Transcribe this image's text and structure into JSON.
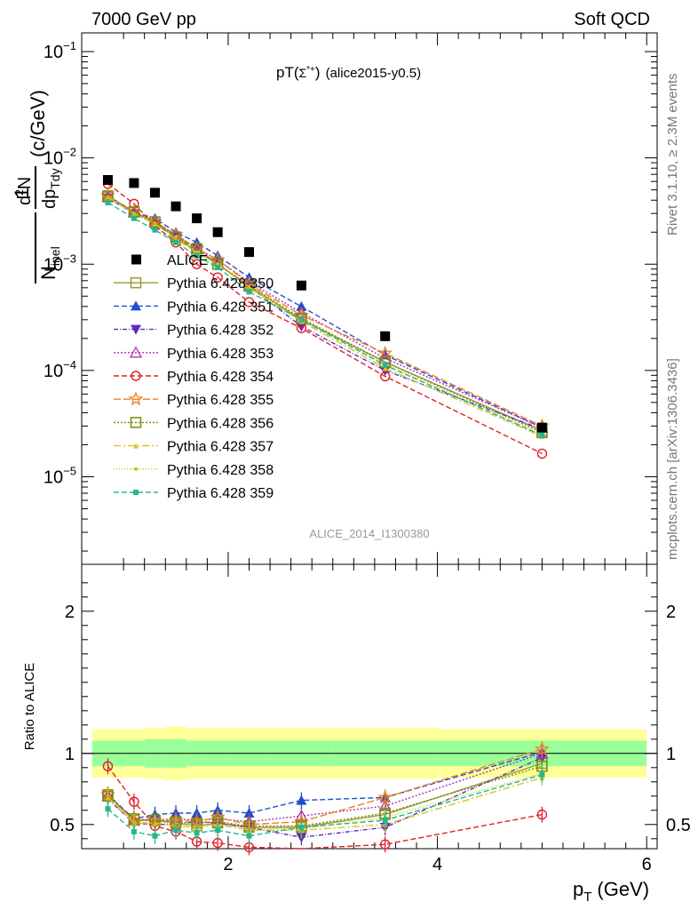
{
  "header": {
    "left": "7000 GeV pp",
    "right": "Soft QCD"
  },
  "side_labels": {
    "rivet": "Rivet 3.1.10, ≥ 2.3M events",
    "mcplots": "mcplots.cern.ch [arXiv:1306.3436]"
  },
  "chart_data": [
    {
      "type": "scatter",
      "panel": "main",
      "title_main": "pT(",
      "title_particle": "Σ",
      "title_particle_sup": "*+",
      "title_close": ")",
      "title_tag": "(alice2015-y0.5)",
      "watermark": "ALICE_2014_I1300380",
      "ylabel_num": "1",
      "ylabel_den_main": "N",
      "ylabel_den_sub": "inel",
      "ylabel_frac2_num": "d",
      "ylabel_frac2_num_sup": "2",
      "ylabel_frac2_num2": "N",
      "ylabel_frac2_den": "dp",
      "ylabel_frac2_den_sub": "Tdy",
      "ylabel_unit": "(c/GeV)",
      "yscale": "log",
      "ylim": [
        1.5e-06,
        0.15
      ],
      "xlim": [
        0.6,
        6.1
      ],
      "yticks": [
        {
          "value": 1e-05,
          "base": "10",
          "exp": "−5"
        },
        {
          "value": 0.0001,
          "base": "10",
          "exp": "−4"
        },
        {
          "value": 0.001,
          "base": "10",
          "exp": "−3"
        },
        {
          "value": 0.01,
          "base": "10",
          "exp": "−2"
        },
        {
          "value": 0.1,
          "base": "10",
          "exp": "−1"
        }
      ],
      "x": [
        0.85,
        1.1,
        1.3,
        1.5,
        1.7,
        1.9,
        2.2,
        2.7,
        3.5,
        5.0
      ],
      "data": {
        "name": "ALICE",
        "values": [
          0.0062,
          0.0058,
          0.0047,
          0.0035,
          0.0027,
          0.002,
          0.0013,
          0.00063,
          0.00021,
          2.9e-05
        ]
      },
      "series": [
        {
          "name": "Pythia 6.428 350",
          "color": "#999933",
          "marker": "square-open",
          "dash": "solid",
          "values": [
            0.0044,
            0.0031,
            0.0025,
            0.0018,
            0.0013,
            0.001,
            0.00062,
            0.0003,
            0.00012,
            2.7e-05
          ]
        },
        {
          "name": "Pythia 6.428 351",
          "color": "#1f4fcf",
          "marker": "triangle-up",
          "dash": "6,3",
          "values": [
            0.0044,
            0.0031,
            0.0027,
            0.002,
            0.0016,
            0.0012,
            0.00075,
            0.0004,
            0.00014,
            2.9e-05
          ]
        },
        {
          "name": "Pythia 6.428 352",
          "color": "#5b2fb8",
          "marker": "triangle-down",
          "dash": "5,2,1,2",
          "values": [
            0.0042,
            0.003,
            0.0024,
            0.0018,
            0.0014,
            0.001,
            0.00062,
            0.00026,
            0.0001,
            2.8e-05
          ]
        },
        {
          "name": "Pythia 6.428 353",
          "color": "#b030b0",
          "marker": "triangle-up-open",
          "dash": "2,2",
          "values": [
            0.0043,
            0.0031,
            0.0025,
            0.0019,
            0.0014,
            0.0011,
            0.00068,
            0.00035,
            0.00013,
            2.9e-05
          ]
        },
        {
          "name": "Pythia 6.428 354",
          "color": "#e0202a",
          "marker": "circle-open",
          "dash": "6,3",
          "values": [
            0.0057,
            0.0037,
            0.0023,
            0.0016,
            0.001,
            0.00075,
            0.00044,
            0.00025,
            8.8e-05,
            1.65e-05
          ]
        },
        {
          "name": "Pythia 6.428 355",
          "color": "#f07f20",
          "marker": "star-open",
          "dash": "8,3",
          "values": [
            0.0044,
            0.0031,
            0.0025,
            0.0019,
            0.0014,
            0.0011,
            0.00065,
            0.00033,
            0.000145,
            3e-05
          ]
        },
        {
          "name": "Pythia 6.428 356",
          "color": "#7a8a10",
          "marker": "square-open",
          "dash": "2,2",
          "values": [
            0.0043,
            0.0031,
            0.0025,
            0.0018,
            0.0014,
            0.001,
            0.00063,
            0.00031,
            0.00012,
            2.6e-05
          ]
        },
        {
          "name": "Pythia 6.428 357",
          "color": "#e0c020",
          "marker": "triangle-small",
          "dash": "8,3,2,3",
          "values": [
            0.0043,
            0.003,
            0.0024,
            0.0017,
            0.0013,
            0.001,
            0.0006,
            0.00029,
            0.000105,
            2.4e-05
          ]
        },
        {
          "name": "Pythia 6.428 358",
          "color": "#b8c818",
          "marker": "dot",
          "dash": "1,2",
          "values": [
            0.0043,
            0.003,
            0.0024,
            0.0018,
            0.0013,
            0.001,
            0.00061,
            0.0003,
            0.000115,
            2.5e-05
          ]
        },
        {
          "name": "Pythia 6.428 359",
          "color": "#20b890",
          "marker": "square",
          "dash": "6,3",
          "values": [
            0.0038,
            0.0027,
            0.0021,
            0.0016,
            0.0012,
            0.00093,
            0.00055,
            0.0003,
            0.000112,
            2.45e-05
          ]
        }
      ]
    },
    {
      "type": "line",
      "panel": "ratio",
      "ylabel": "Ratio to ALICE",
      "xlabel_main": "p",
      "xlabel_sub": "T",
      "xlabel_unit": "(GeV)",
      "ylim": [
        0.33,
        2.33
      ],
      "yticks": [
        {
          "value": 0.5,
          "label": "0.5"
        },
        {
          "value": 1,
          "label": "1"
        },
        {
          "value": 2,
          "label": "2"
        }
      ],
      "xticks": [
        {
          "value": 2,
          "label": "2"
        },
        {
          "value": 4,
          "label": "4"
        },
        {
          "value": 6,
          "label": "6"
        }
      ],
      "bins": [
        {
          "lo": 0.7,
          "hi": 1.0,
          "stat": 0.09,
          "tot": 0.17
        },
        {
          "lo": 1.0,
          "hi": 1.2,
          "stat": 0.09,
          "tot": 0.17
        },
        {
          "lo": 1.2,
          "hi": 1.4,
          "stat": 0.1,
          "tot": 0.18
        },
        {
          "lo": 1.4,
          "hi": 1.6,
          "stat": 0.1,
          "tot": 0.19
        },
        {
          "lo": 1.6,
          "hi": 1.8,
          "stat": 0.09,
          "tot": 0.18
        },
        {
          "lo": 1.8,
          "hi": 2.0,
          "stat": 0.09,
          "tot": 0.18
        },
        {
          "lo": 2.0,
          "hi": 2.4,
          "stat": 0.09,
          "tot": 0.18
        },
        {
          "lo": 2.4,
          "hi": 3.0,
          "stat": 0.09,
          "tot": 0.18
        },
        {
          "lo": 3.0,
          "hi": 4.0,
          "stat": 0.09,
          "tot": 0.18
        },
        {
          "lo": 4.0,
          "hi": 6.0,
          "stat": 0.09,
          "tot": 0.17
        }
      ],
      "series": [
        {
          "name": "Pythia 6.428 350",
          "values": [
            0.71,
            0.53,
            0.53,
            0.51,
            0.49,
            0.51,
            0.48,
            0.48,
            0.57,
            0.93
          ]
        },
        {
          "name": "Pythia 6.428 351",
          "values": [
            0.71,
            0.54,
            0.57,
            0.58,
            0.58,
            0.6,
            0.58,
            0.67,
            0.69,
            1.01
          ]
        },
        {
          "name": "Pythia 6.428 352",
          "values": [
            0.68,
            0.51,
            0.5,
            0.5,
            0.52,
            0.51,
            0.48,
            0.41,
            0.48,
            0.97
          ]
        },
        {
          "name": "Pythia 6.428 353",
          "values": [
            0.7,
            0.53,
            0.53,
            0.54,
            0.53,
            0.54,
            0.52,
            0.56,
            0.63,
            1.0
          ]
        },
        {
          "name": "Pythia 6.428 354",
          "values": [
            0.91,
            0.66,
            0.49,
            0.45,
            0.38,
            0.37,
            0.34,
            0.33,
            0.36,
            0.57
          ]
        },
        {
          "name": "Pythia 6.428 355",
          "values": [
            0.71,
            0.53,
            0.53,
            0.53,
            0.52,
            0.55,
            0.5,
            0.52,
            0.69,
            1.03
          ]
        },
        {
          "name": "Pythia 6.428 356",
          "values": [
            0.7,
            0.54,
            0.53,
            0.52,
            0.51,
            0.52,
            0.49,
            0.49,
            0.58,
            0.91
          ]
        },
        {
          "name": "Pythia 6.428 357",
          "values": [
            0.69,
            0.51,
            0.51,
            0.49,
            0.48,
            0.5,
            0.46,
            0.46,
            0.5,
            0.83
          ]
        },
        {
          "name": "Pythia 6.428 358",
          "values": [
            0.7,
            0.52,
            0.51,
            0.51,
            0.49,
            0.5,
            0.47,
            0.47,
            0.55,
            0.86
          ]
        },
        {
          "name": "Pythia 6.428 359",
          "values": [
            0.61,
            0.45,
            0.42,
            0.46,
            0.44,
            0.46,
            0.42,
            0.48,
            0.53,
            0.85
          ]
        }
      ]
    }
  ]
}
